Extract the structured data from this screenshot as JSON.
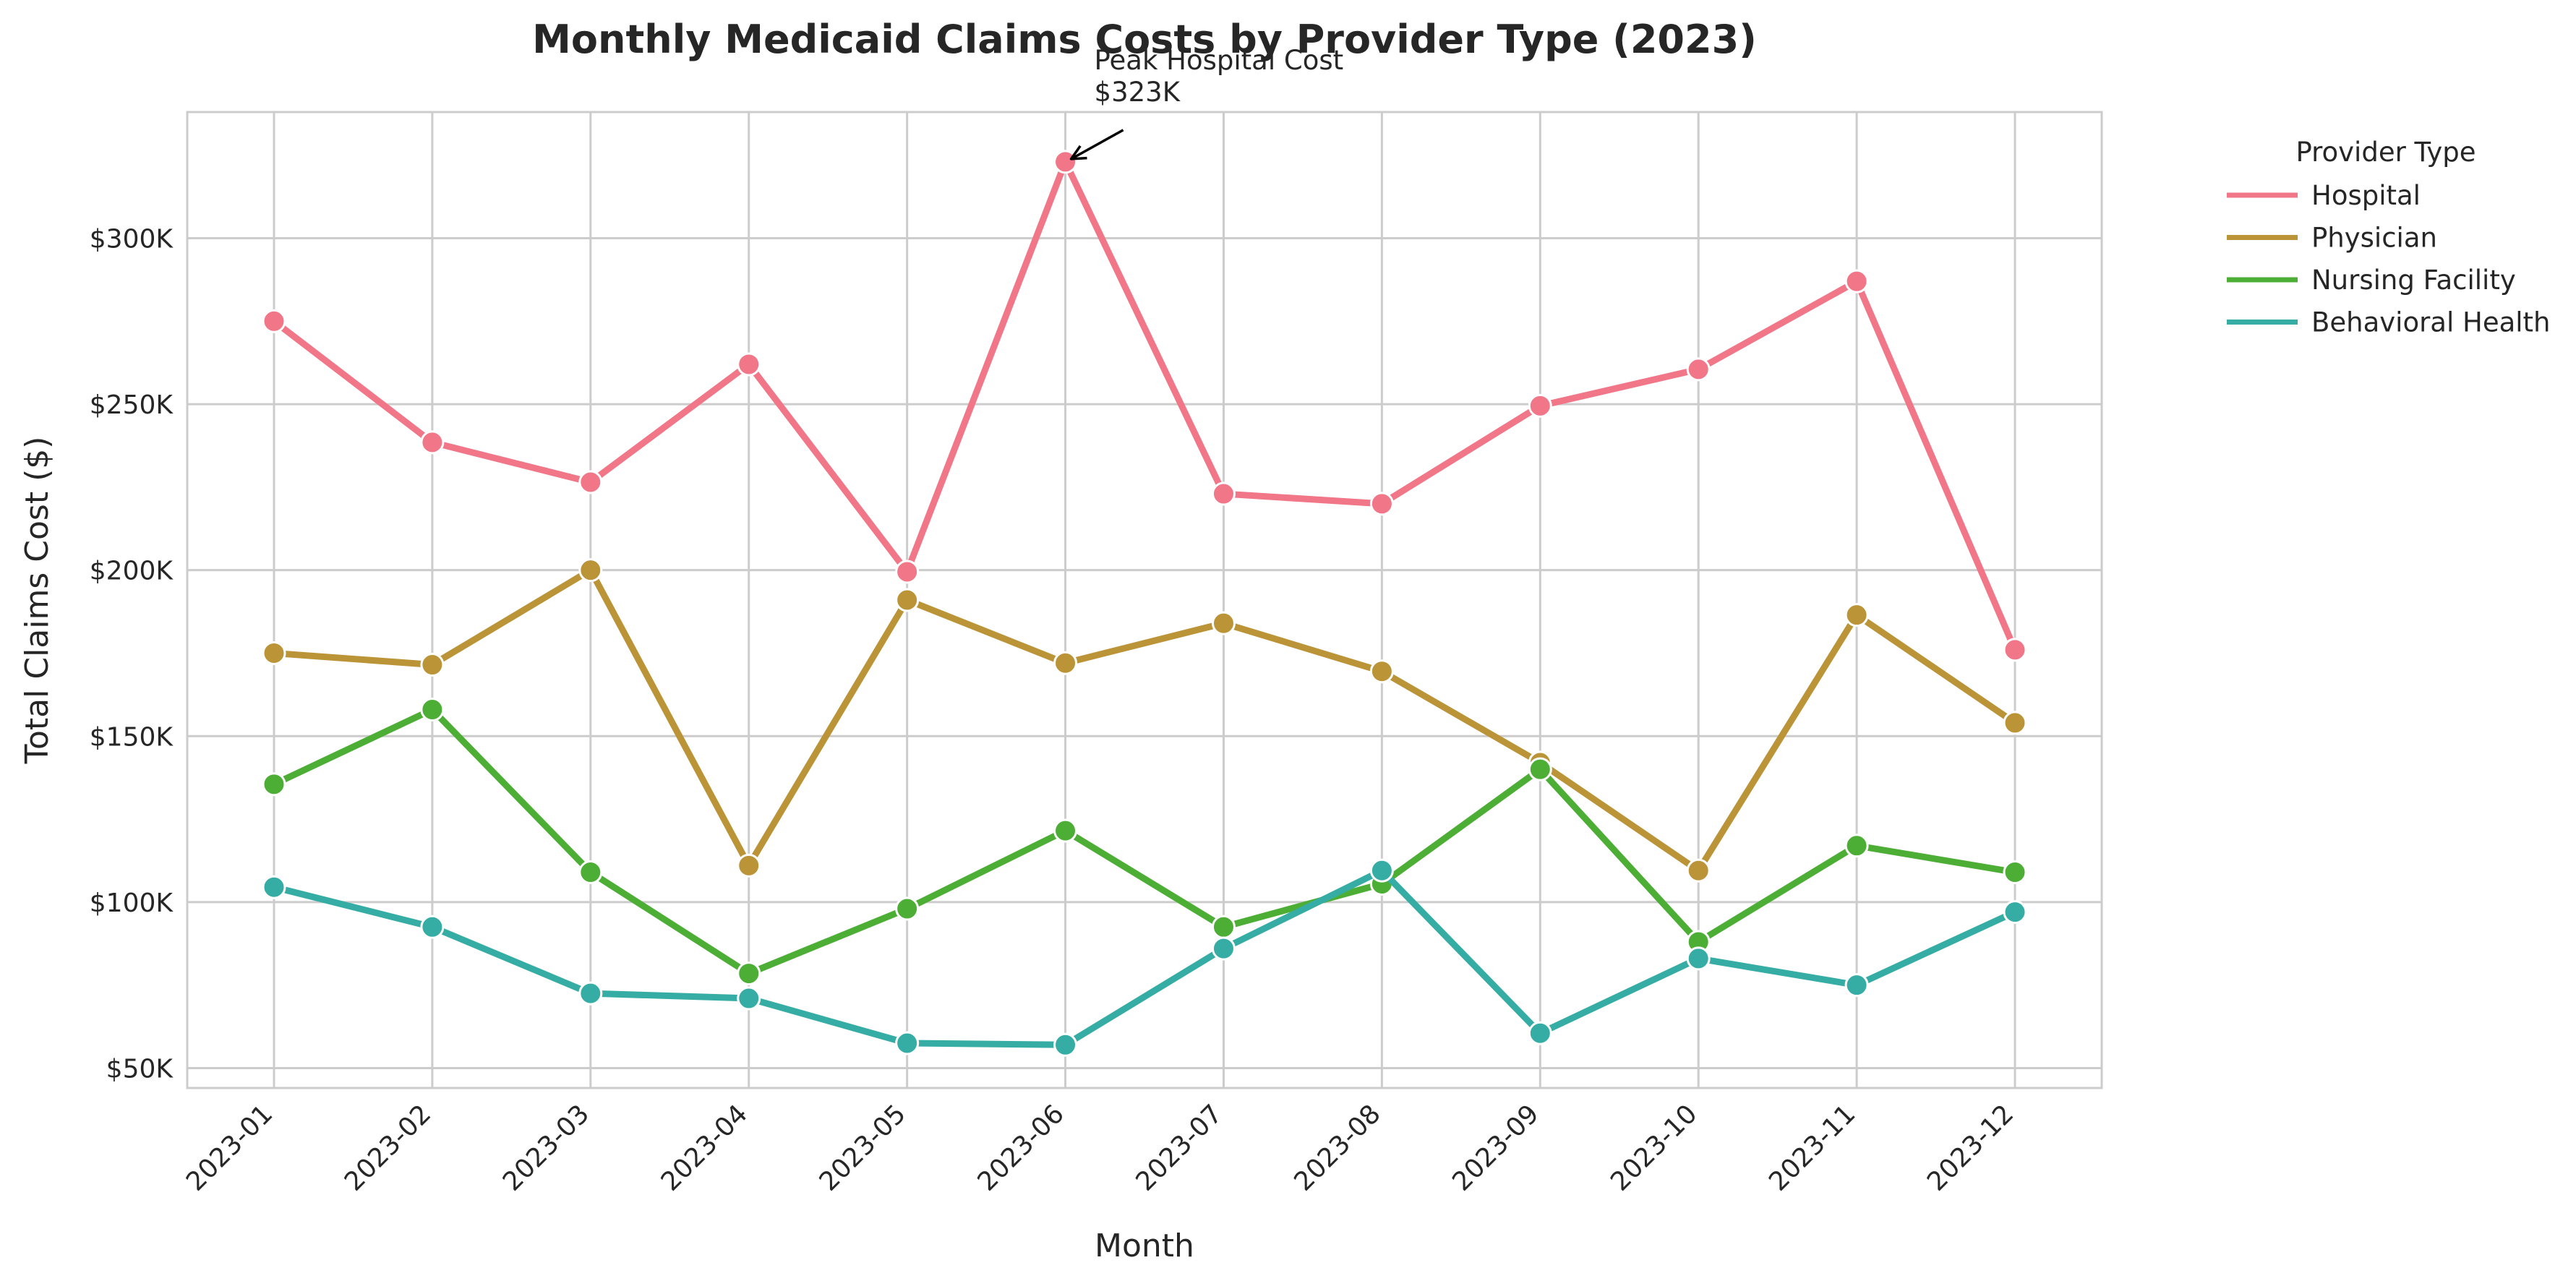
{
  "chart_data": {
    "type": "line",
    "title": "Monthly Medicaid Claims Costs by Provider Type (2023)",
    "xlabel": "Month",
    "ylabel": "Total Claims Cost ($)",
    "categories": [
      "2023-01",
      "2023-02",
      "2023-03",
      "2023-04",
      "2023-05",
      "2023-06",
      "2023-07",
      "2023-08",
      "2023-09",
      "2023-10",
      "2023-11",
      "2023-12"
    ],
    "yticks": [
      50000,
      100000,
      150000,
      200000,
      250000,
      300000
    ],
    "ytick_labels": [
      "$50K",
      "$100K",
      "$150K",
      "$200K",
      "$250K",
      "$300K"
    ],
    "ylim": [
      44000,
      338000
    ],
    "grid": true,
    "legend": {
      "title": "Provider Type",
      "placement": "outside-right"
    },
    "series": [
      {
        "name": "Hospital",
        "color": "#f07688",
        "values": [
          275000,
          238500,
          226500,
          262000,
          199500,
          323000,
          223000,
          220000,
          249500,
          260500,
          287000,
          176000
        ]
      },
      {
        "name": "Physician",
        "color": "#bb9438",
        "values": [
          175000,
          171500,
          200000,
          111000,
          191000,
          172000,
          184000,
          169500,
          142000,
          109500,
          186500,
          154000
        ]
      },
      {
        "name": "Nursing Facility",
        "color": "#4dae36",
        "values": [
          135500,
          158000,
          109000,
          78500,
          98000,
          121500,
          92500,
          105500,
          140000,
          88000,
          117000,
          109000
        ]
      },
      {
        "name": "Behavioral Health",
        "color": "#36ada4",
        "values": [
          104500,
          92500,
          72500,
          71000,
          57500,
          57000,
          86000,
          109500,
          60500,
          83000,
          75000,
          97000
        ]
      }
    ],
    "annotation": {
      "lines": [
        "Peak Hospital Cost",
        "$323K"
      ],
      "series": "Hospital",
      "category": "2023-06",
      "value": 323000
    }
  }
}
